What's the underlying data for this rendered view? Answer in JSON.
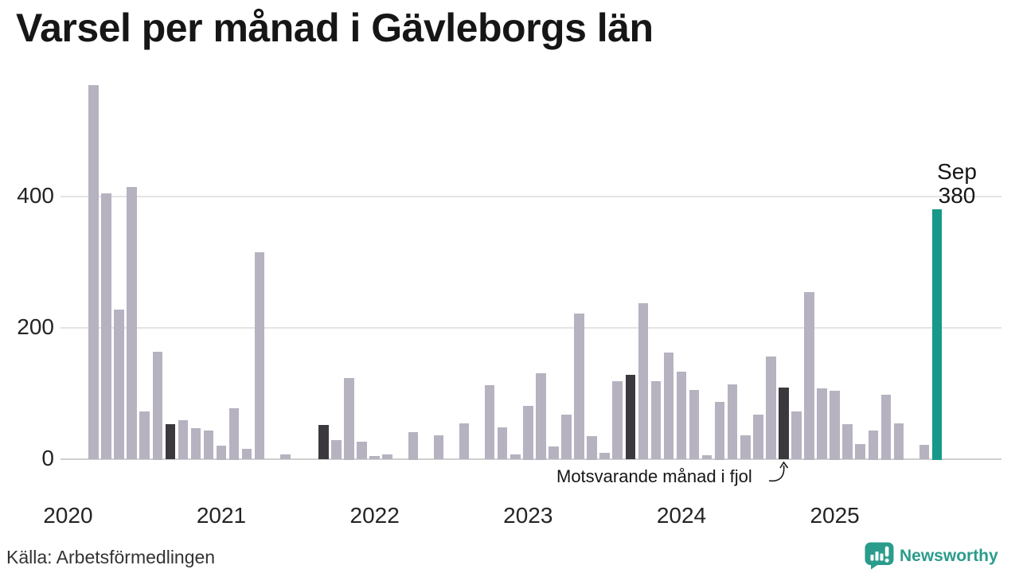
{
  "title": "Varsel per månad i Gävleborgs län",
  "source": "Källa: Arbetsförmedlingen",
  "logo": {
    "text": "Newsworthy"
  },
  "annotation": {
    "text": "Motsvarande månad i fjol"
  },
  "highlight": {
    "month_label": "Sep",
    "value_label": "380"
  },
  "colors": {
    "bar_default": "#b6b2c0",
    "bar_prior_september": "#3b393d",
    "bar_current": "#17998a",
    "gridline": "#e4e4e4",
    "axis_line": "#d0d0d0",
    "title_text": "#161616",
    "axis_text": "#242424",
    "logo_teal": "#2b9c8c"
  },
  "y_axis": {
    "ticks": [
      0,
      200,
      400
    ]
  },
  "x_axis": {
    "years": [
      "2020",
      "2021",
      "2022",
      "2023",
      "2024",
      "2025"
    ]
  },
  "chart_data": {
    "type": "bar",
    "title": "Varsel per månad i Gävleborgs län",
    "xlabel": "",
    "ylabel": "",
    "x_unit": "month",
    "x_range": [
      "2020-01",
      "2025-09"
    ],
    "ylim": [
      0,
      580
    ],
    "yticks": [
      0,
      200,
      400
    ],
    "grid": "horizontal",
    "legend": {
      "bar_prior_september": "Motsvarande månad i fjol",
      "bar_current": "Sep 2025: 380"
    },
    "months": [
      {
        "month": "2020-01",
        "value": 0,
        "kind": "default"
      },
      {
        "month": "2020-02",
        "value": 0,
        "kind": "default"
      },
      {
        "month": "2020-03",
        "value": 569,
        "kind": "default"
      },
      {
        "month": "2020-04",
        "value": 404,
        "kind": "default"
      },
      {
        "month": "2020-05",
        "value": 227,
        "kind": "default"
      },
      {
        "month": "2020-06",
        "value": 413,
        "kind": "default"
      },
      {
        "month": "2020-07",
        "value": 72,
        "kind": "default"
      },
      {
        "month": "2020-08",
        "value": 162,
        "kind": "default"
      },
      {
        "month": "2020-09",
        "value": 52,
        "kind": "prior-september"
      },
      {
        "month": "2020-10",
        "value": 58,
        "kind": "default"
      },
      {
        "month": "2020-11",
        "value": 46,
        "kind": "default"
      },
      {
        "month": "2020-12",
        "value": 42,
        "kind": "default"
      },
      {
        "month": "2021-01",
        "value": 20,
        "kind": "default"
      },
      {
        "month": "2021-02",
        "value": 77,
        "kind": "default"
      },
      {
        "month": "2021-03",
        "value": 15,
        "kind": "default"
      },
      {
        "month": "2021-04",
        "value": 314,
        "kind": "default"
      },
      {
        "month": "2021-05",
        "value": 0,
        "kind": "default"
      },
      {
        "month": "2021-06",
        "value": 6,
        "kind": "default"
      },
      {
        "month": "2021-07",
        "value": 0,
        "kind": "default"
      },
      {
        "month": "2021-08",
        "value": 0,
        "kind": "default"
      },
      {
        "month": "2021-09",
        "value": 51,
        "kind": "prior-september"
      },
      {
        "month": "2021-10",
        "value": 28,
        "kind": "default"
      },
      {
        "month": "2021-11",
        "value": 123,
        "kind": "default"
      },
      {
        "month": "2021-12",
        "value": 26,
        "kind": "default"
      },
      {
        "month": "2022-01",
        "value": 4,
        "kind": "default"
      },
      {
        "month": "2022-02",
        "value": 6,
        "kind": "default"
      },
      {
        "month": "2022-03",
        "value": 0,
        "kind": "default"
      },
      {
        "month": "2022-04",
        "value": 40,
        "kind": "default"
      },
      {
        "month": "2022-05",
        "value": 0,
        "kind": "default"
      },
      {
        "month": "2022-06",
        "value": 35,
        "kind": "default"
      },
      {
        "month": "2022-07",
        "value": 0,
        "kind": "default"
      },
      {
        "month": "2022-08",
        "value": 53,
        "kind": "default"
      },
      {
        "month": "2022-09",
        "value": 0,
        "kind": "prior-september"
      },
      {
        "month": "2022-10",
        "value": 112,
        "kind": "default"
      },
      {
        "month": "2022-11",
        "value": 47,
        "kind": "default"
      },
      {
        "month": "2022-12",
        "value": 6,
        "kind": "default"
      },
      {
        "month": "2023-01",
        "value": 80,
        "kind": "default"
      },
      {
        "month": "2023-02",
        "value": 130,
        "kind": "default"
      },
      {
        "month": "2023-03",
        "value": 18,
        "kind": "default"
      },
      {
        "month": "2023-04",
        "value": 67,
        "kind": "default"
      },
      {
        "month": "2023-05",
        "value": 221,
        "kind": "default"
      },
      {
        "month": "2023-06",
        "value": 34,
        "kind": "default"
      },
      {
        "month": "2023-07",
        "value": 9,
        "kind": "default"
      },
      {
        "month": "2023-08",
        "value": 118,
        "kind": "default"
      },
      {
        "month": "2023-09",
        "value": 127,
        "kind": "prior-september"
      },
      {
        "month": "2023-10",
        "value": 236,
        "kind": "default"
      },
      {
        "month": "2023-11",
        "value": 118,
        "kind": "default"
      },
      {
        "month": "2023-12",
        "value": 161,
        "kind": "default"
      },
      {
        "month": "2024-01",
        "value": 132,
        "kind": "default"
      },
      {
        "month": "2024-02",
        "value": 104,
        "kind": "default"
      },
      {
        "month": "2024-03",
        "value": 5,
        "kind": "default"
      },
      {
        "month": "2024-04",
        "value": 86,
        "kind": "default"
      },
      {
        "month": "2024-05",
        "value": 113,
        "kind": "default"
      },
      {
        "month": "2024-06",
        "value": 35,
        "kind": "default"
      },
      {
        "month": "2024-07",
        "value": 67,
        "kind": "default"
      },
      {
        "month": "2024-08",
        "value": 155,
        "kind": "default"
      },
      {
        "month": "2024-09",
        "value": 108,
        "kind": "prior-september"
      },
      {
        "month": "2024-10",
        "value": 72,
        "kind": "default"
      },
      {
        "month": "2024-11",
        "value": 254,
        "kind": "default"
      },
      {
        "month": "2024-12",
        "value": 107,
        "kind": "default"
      },
      {
        "month": "2025-01",
        "value": 103,
        "kind": "default"
      },
      {
        "month": "2025-02",
        "value": 52,
        "kind": "default"
      },
      {
        "month": "2025-03",
        "value": 22,
        "kind": "default"
      },
      {
        "month": "2025-04",
        "value": 43,
        "kind": "default"
      },
      {
        "month": "2025-05",
        "value": 97,
        "kind": "default"
      },
      {
        "month": "2025-06",
        "value": 54,
        "kind": "default"
      },
      {
        "month": "2025-07",
        "value": 0,
        "kind": "default"
      },
      {
        "month": "2025-08",
        "value": 21,
        "kind": "default"
      },
      {
        "month": "2025-09",
        "value": 380,
        "kind": "current"
      }
    ]
  }
}
